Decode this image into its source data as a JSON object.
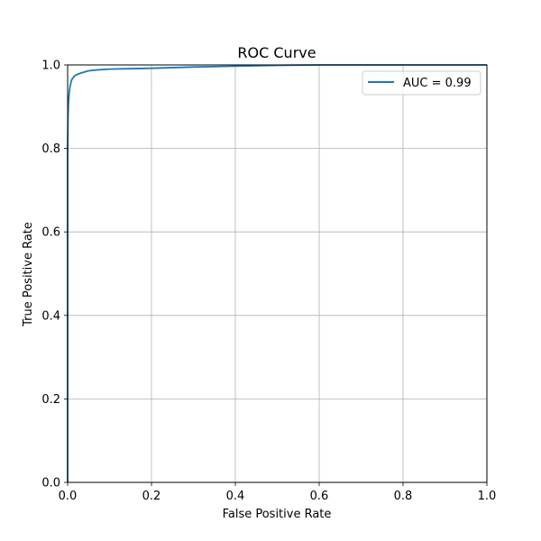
{
  "chart_data": {
    "type": "line",
    "title": "ROC Curve",
    "xlabel": "False Positive Rate",
    "ylabel": "True Positive Rate",
    "xlim": [
      0,
      1
    ],
    "ylim": [
      0,
      1
    ],
    "xticks": [
      "0.0",
      "0.2",
      "0.4",
      "0.6",
      "0.8",
      "1.0"
    ],
    "yticks": [
      "0.0",
      "0.2",
      "0.4",
      "0.6",
      "0.8",
      "1.0"
    ],
    "grid": true,
    "legend_position": "top-right",
    "series": [
      {
        "name": "AUC = 0.99",
        "color": "#1f77b4",
        "x": [
          0.0,
          0.0,
          0.001,
          0.002,
          0.004,
          0.006,
          0.008,
          0.01,
          0.015,
          0.02,
          0.03,
          0.04,
          0.05,
          0.07,
          0.1,
          0.15,
          0.2,
          0.3,
          0.4,
          0.5,
          0.6,
          1.0
        ],
        "y": [
          0.0,
          0.8,
          0.88,
          0.91,
          0.935,
          0.95,
          0.958,
          0.965,
          0.972,
          0.976,
          0.98,
          0.983,
          0.986,
          0.988,
          0.99,
          0.991,
          0.992,
          0.995,
          0.997,
          0.999,
          1.0,
          1.0
        ]
      }
    ]
  }
}
